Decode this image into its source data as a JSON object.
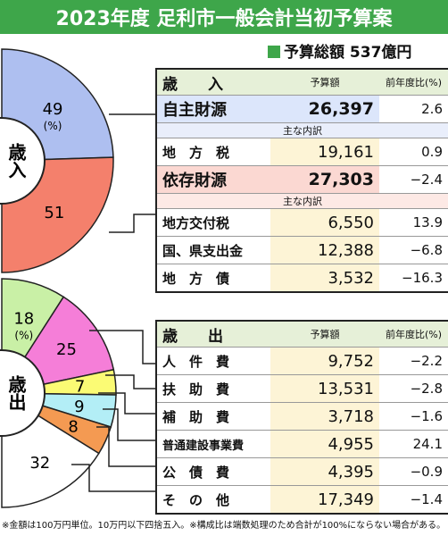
{
  "title": "2023年度 足利市一般会計当初予算案",
  "total": "予算総額 537億円",
  "revenue": {
    "header": {
      "name": "歳　　入",
      "amount": "予算額",
      "ratio": "前年度比(%)"
    },
    "rows": [
      {
        "name": "自主財源",
        "amount": "26,397",
        "ratio": "2.6"
      },
      {
        "name": "主な内訳",
        "amount": "",
        "ratio": ""
      },
      {
        "name": "地　方　税",
        "amount": "19,161",
        "ratio": "0.9"
      },
      {
        "name": "依存財源",
        "amount": "27,303",
        "ratio": "−2.4"
      },
      {
        "name": "主な内訳",
        "amount": "",
        "ratio": ""
      },
      {
        "name": "地方交付税",
        "amount": "6,550",
        "ratio": "13.9"
      },
      {
        "name": "国、県支出金",
        "amount": "12,388",
        "ratio": "−6.8"
      },
      {
        "name": "地　方　債",
        "amount": "3,532",
        "ratio": "−16.3"
      }
    ]
  },
  "expenditure": {
    "header": {
      "name": "歳　　出",
      "amount": "予算額",
      "ratio": "前年度比(%)"
    },
    "rows": [
      {
        "name": "人　件　費",
        "amount": "9,752",
        "ratio": "−2.2"
      },
      {
        "name": "扶　助　費",
        "amount": "13,531",
        "ratio": "−2.8"
      },
      {
        "name": "補　助　費",
        "amount": "3,718",
        "ratio": "−1.6"
      },
      {
        "name": "普通建設事業費",
        "amount": "4,955",
        "ratio": "24.1"
      },
      {
        "name": "公　債　費",
        "amount": "4,395",
        "ratio": "−0.9"
      },
      {
        "name": "そ　の　他",
        "amount": "17,349",
        "ratio": "−1.4"
      }
    ]
  },
  "footnote": "※金額は100万円単位。10万円以下四捨五入。※構成比は端数処理のため合計が100%にならない場合がある。",
  "chart_data": [
    {
      "type": "pie",
      "label": "歳入",
      "unit": "(%)",
      "slices": [
        {
          "value": 49,
          "color": "#aebff0"
        },
        {
          "value": 51,
          "color": "#f4806c"
        }
      ]
    },
    {
      "type": "pie",
      "label": "歳出",
      "unit": "(%)",
      "slices": [
        {
          "value": 18,
          "color": "#c9f0a6"
        },
        {
          "value": 25,
          "color": "#f57ed8"
        },
        {
          "value": 7,
          "color": "#fbfb74"
        },
        {
          "value": 9,
          "color": "#b3eef6"
        },
        {
          "value": 8,
          "color": "#f49a52"
        },
        {
          "value": 32,
          "color": "#ffffff"
        }
      ]
    }
  ]
}
